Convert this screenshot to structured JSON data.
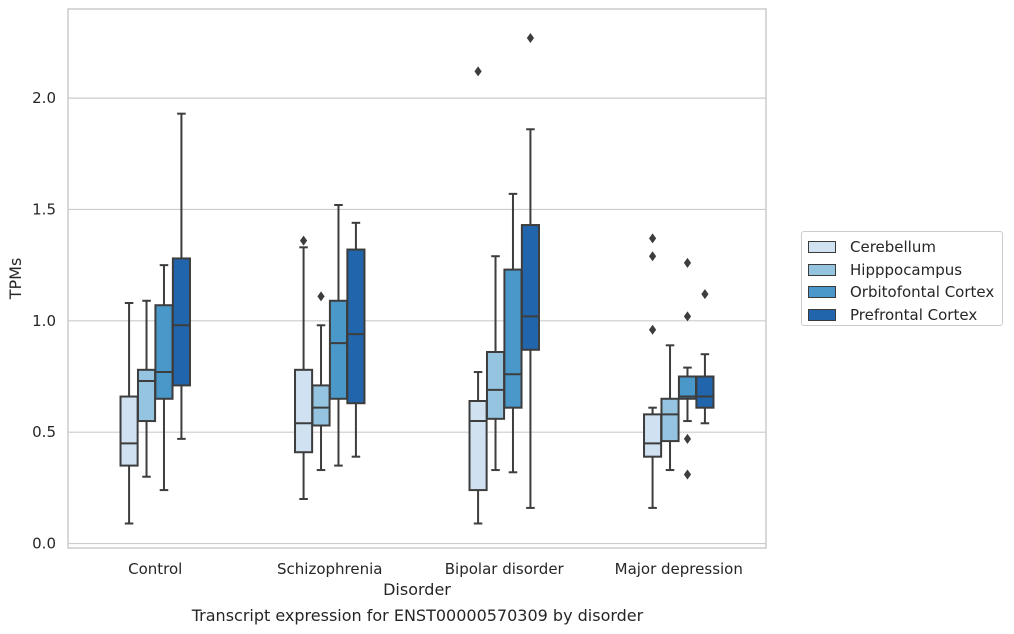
{
  "chart_data": {
    "type": "box",
    "title": "Transcript expression for ENST00000570309 by disorder",
    "xlabel": "Disorder",
    "ylabel": "TPMs",
    "ylim": [
      -0.02,
      2.4
    ],
    "yticks": [
      0.0,
      0.5,
      1.0,
      1.5,
      2.0
    ],
    "ytick_labels": [
      "0.0",
      "0.5",
      "1.0",
      "1.5",
      "2.0"
    ],
    "grid": "horizontal",
    "legend_position": "right",
    "categories": [
      "Control",
      "Schizophrenia",
      "Bipolar disorder",
      "Major depression"
    ],
    "series": [
      {
        "name": "Cerebellum",
        "color": "#d0e1f2",
        "boxes": [
          {
            "whisker_low": 0.09,
            "q1": 0.35,
            "median": 0.45,
            "q3": 0.66,
            "whisker_high": 1.08,
            "outliers": []
          },
          {
            "whisker_low": 0.2,
            "q1": 0.41,
            "median": 0.54,
            "q3": 0.78,
            "whisker_high": 1.33,
            "outliers": [
              1.36
            ]
          },
          {
            "whisker_low": 0.09,
            "q1": 0.24,
            "median": 0.55,
            "q3": 0.64,
            "whisker_high": 0.77,
            "outliers": [
              2.12
            ]
          },
          {
            "whisker_low": 0.16,
            "q1": 0.39,
            "median": 0.45,
            "q3": 0.58,
            "whisker_high": 0.61,
            "outliers": [
              0.96,
              1.29,
              1.37
            ]
          }
        ]
      },
      {
        "name": "Hipppocampus",
        "color": "#94c4df",
        "boxes": [
          {
            "whisker_low": 0.3,
            "q1": 0.55,
            "median": 0.73,
            "q3": 0.78,
            "whisker_high": 1.09,
            "outliers": []
          },
          {
            "whisker_low": 0.33,
            "q1": 0.53,
            "median": 0.61,
            "q3": 0.71,
            "whisker_high": 0.98,
            "outliers": [
              1.11
            ]
          },
          {
            "whisker_low": 0.33,
            "q1": 0.56,
            "median": 0.69,
            "q3": 0.86,
            "whisker_high": 1.29,
            "outliers": []
          },
          {
            "whisker_low": 0.33,
            "q1": 0.46,
            "median": 0.58,
            "q3": 0.65,
            "whisker_high": 0.89,
            "outliers": []
          }
        ]
      },
      {
        "name": "Orbitofontal Cortex",
        "color": "#4a98c9",
        "boxes": [
          {
            "whisker_low": 0.24,
            "q1": 0.65,
            "median": 0.77,
            "q3": 1.07,
            "whisker_high": 1.25,
            "outliers": []
          },
          {
            "whisker_low": 0.35,
            "q1": 0.65,
            "median": 0.9,
            "q3": 1.09,
            "whisker_high": 1.52,
            "outliers": []
          },
          {
            "whisker_low": 0.32,
            "q1": 0.61,
            "median": 0.76,
            "q3": 1.23,
            "whisker_high": 1.57,
            "outliers": []
          },
          {
            "whisker_low": 0.55,
            "q1": 0.65,
            "median": 0.66,
            "q3": 0.75,
            "whisker_high": 0.79,
            "outliers": [
              0.31,
              0.47,
              1.02,
              1.26
            ]
          }
        ]
      },
      {
        "name": "Prefrontal Cortex",
        "color": "#2166ac",
        "boxes": [
          {
            "whisker_low": 0.47,
            "q1": 0.71,
            "median": 0.98,
            "q3": 1.28,
            "whisker_high": 1.93,
            "outliers": []
          },
          {
            "whisker_low": 0.39,
            "q1": 0.63,
            "median": 0.94,
            "q3": 1.32,
            "whisker_high": 1.44,
            "outliers": []
          },
          {
            "whisker_low": 0.16,
            "q1": 0.87,
            "median": 1.02,
            "q3": 1.43,
            "whisker_high": 1.86,
            "outliers": [
              2.27
            ]
          },
          {
            "whisker_low": 0.54,
            "q1": 0.61,
            "median": 0.66,
            "q3": 0.75,
            "whisker_high": 0.85,
            "outliers": [
              1.12
            ]
          }
        ]
      }
    ]
  }
}
